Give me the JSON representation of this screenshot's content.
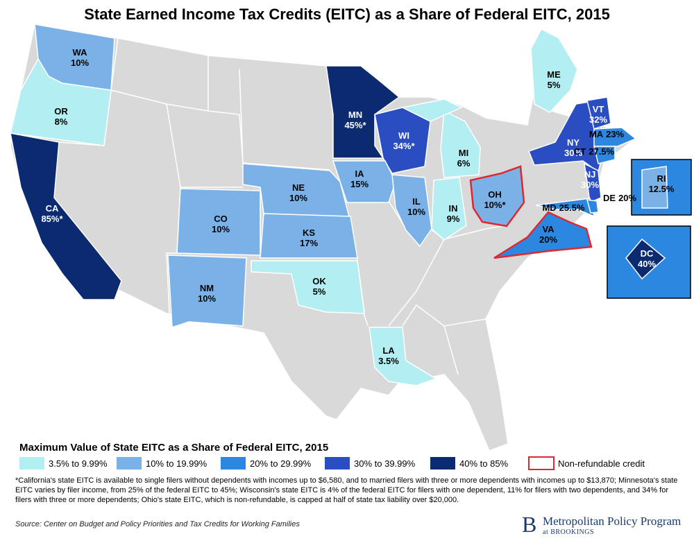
{
  "title": "State Earned Income Tax Credits (EITC) as a Share of Federal EITC, 2015",
  "base_color": "#d9d9d9",
  "states": [
    {
      "abbr": "WA",
      "value": "10%",
      "color": "#7ab2e8"
    },
    {
      "abbr": "OR",
      "value": "8%",
      "color": "#b2eef2"
    },
    {
      "abbr": "CA",
      "value": "85%*",
      "color": "#0b2a6f"
    },
    {
      "abbr": "MN",
      "value": "45%*",
      "color": "#0b2a6f"
    },
    {
      "abbr": "WI",
      "value": "34%*",
      "color": "#2a4dc2"
    },
    {
      "abbr": "MI",
      "value": "6%",
      "color": "#b2eef2"
    },
    {
      "abbr": "IA",
      "value": "15%",
      "color": "#7ab2e8"
    },
    {
      "abbr": "IL",
      "value": "10%",
      "color": "#7ab2e8"
    },
    {
      "abbr": "IN",
      "value": "9%",
      "color": "#b2eef2"
    },
    {
      "abbr": "OH",
      "value": "10%*",
      "color": "#7ab2e8",
      "non_refundable": true
    },
    {
      "abbr": "NE",
      "value": "10%",
      "color": "#7ab2e8"
    },
    {
      "abbr": "KS",
      "value": "17%",
      "color": "#7ab2e8"
    },
    {
      "abbr": "CO",
      "value": "10%",
      "color": "#7ab2e8"
    },
    {
      "abbr": "NM",
      "value": "10%",
      "color": "#7ab2e8"
    },
    {
      "abbr": "OK",
      "value": "5%",
      "color": "#b2eef2"
    },
    {
      "abbr": "LA",
      "value": "3.5%",
      "color": "#b2eef2"
    },
    {
      "abbr": "NY",
      "value": "30%",
      "color": "#2a4dc2"
    },
    {
      "abbr": "VT",
      "value": "32%",
      "color": "#2a4dc2"
    },
    {
      "abbr": "MA",
      "value": "23%",
      "color": "#2b87e0"
    },
    {
      "abbr": "CT",
      "value": "27.5%",
      "color": "#2b87e0"
    },
    {
      "abbr": "RI",
      "value": "12.5%",
      "color": "#7ab2e8"
    },
    {
      "abbr": "NJ",
      "value": "30%",
      "color": "#2a4dc2"
    },
    {
      "abbr": "MD",
      "value": "25.5%",
      "color": "#2b87e0"
    },
    {
      "abbr": "DE",
      "value": "20%",
      "color": "#2b87e0"
    },
    {
      "abbr": "VA",
      "value": "20%",
      "color": "#2b87e0",
      "non_refundable": true
    },
    {
      "abbr": "DC",
      "value": "40%",
      "color": "#0b2a6f"
    },
    {
      "abbr": "ME",
      "value": "5%",
      "color": "#b2eef2"
    }
  ],
  "legend": {
    "title": "Maximum Value of State EITC as a Share of Federal EITC, 2015",
    "items": [
      {
        "label": "3.5% to 9.99%",
        "color": "#b2eef2"
      },
      {
        "label": "10% to 19.99%",
        "color": "#7ab2e8"
      },
      {
        "label": "20% to 29.99%",
        "color": "#2b87e0"
      },
      {
        "label": "30% to 39.99%",
        "color": "#2a4dc2"
      },
      {
        "label": "40% to 85%",
        "color": "#0b2a6f"
      },
      {
        "label": "Non-refundable credit",
        "outline": "#e0262e"
      }
    ]
  },
  "footnote": "*California's state EITC is available to single filers without dependents with incomes up to $6,580, and to married filers with three or more dependents with incomes up to $13,870; Minnesota's state EITC varies by filer income, from 25% of the federal EITC to 45%; Wisconsin's state EITC is 4% of the federal EITC for filers with one dependent, 11% for filers with two dependents, and 34% for filers with three or more dependents; Ohio's state EITC, which is non-refundable, is capped at half of state tax liability over $20,000.",
  "source": "Source: Center on Budget and Policy Priorities and Tax Credits for Working Families",
  "logo": {
    "mark": "B",
    "name": "Metropolitan Policy Program",
    "sub": "at BROOKINGS"
  }
}
